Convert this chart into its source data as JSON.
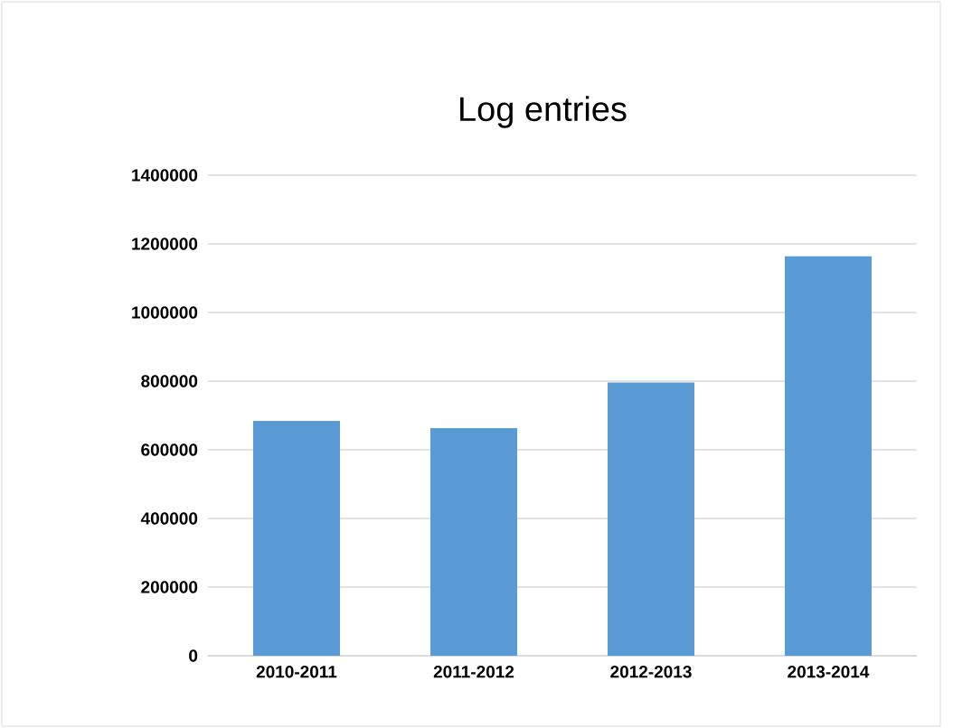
{
  "chart_data": {
    "type": "bar",
    "title": "Log entries",
    "categories": [
      "2010-2011",
      "2011-2012",
      "2012-2013",
      "2013-2014"
    ],
    "values": [
      684000,
      663000,
      796000,
      1164000
    ],
    "color": "#5b9bd5",
    "ylim": [
      0,
      1400000
    ],
    "yticks": [
      0,
      200000,
      400000,
      600000,
      800000,
      1000000,
      1200000,
      1400000
    ],
    "grid": "y"
  }
}
